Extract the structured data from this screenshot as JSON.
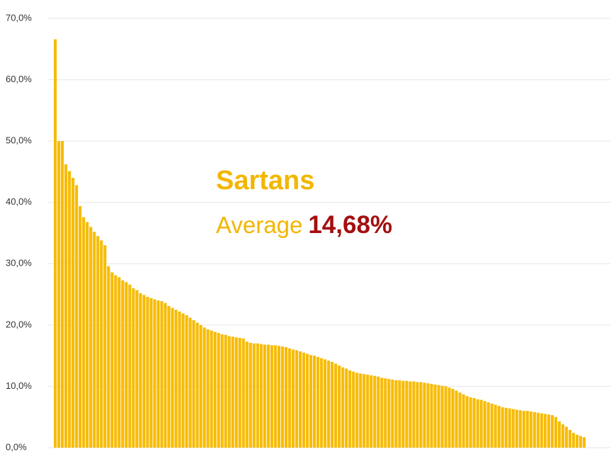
{
  "chart_data": {
    "type": "bar",
    "annotations": {
      "title": "Sartans",
      "label": "Average",
      "value": "14,68%"
    },
    "values": [
      66.6,
      50.0,
      50.0,
      46.2,
      45.1,
      44.0,
      42.8,
      39.4,
      37.6,
      36.8,
      36.0,
      35.2,
      34.5,
      33.8,
      33.0,
      29.6,
      28.6,
      28.1,
      27.8,
      27.3,
      27.0,
      26.6,
      26.0,
      25.7,
      25.2,
      24.9,
      24.6,
      24.4,
      24.2,
      24.0,
      23.9,
      23.6,
      23.1,
      22.8,
      22.5,
      22.2,
      21.9,
      21.6,
      21.2,
      20.8,
      20.4,
      20.0,
      19.6,
      19.3,
      19.1,
      18.9,
      18.7,
      18.5,
      18.4,
      18.2,
      18.1,
      18.0,
      17.9,
      17.8,
      17.3,
      17.1,
      17.0,
      17.0,
      16.9,
      16.8,
      16.8,
      16.7,
      16.7,
      16.6,
      16.5,
      16.4,
      16.2,
      16.0,
      15.9,
      15.7,
      15.5,
      15.3,
      15.1,
      15.0,
      14.8,
      14.6,
      14.4,
      14.2,
      14.0,
      13.7,
      13.4,
      13.1,
      12.9,
      12.6,
      12.4,
      12.2,
      12.1,
      12.0,
      11.9,
      11.8,
      11.7,
      11.6,
      11.4,
      11.3,
      11.2,
      11.1,
      11.0,
      11.0,
      10.9,
      10.9,
      10.8,
      10.8,
      10.7,
      10.7,
      10.6,
      10.5,
      10.4,
      10.3,
      10.2,
      10.1,
      10.0,
      9.8,
      9.6,
      9.3,
      9.0,
      8.7,
      8.4,
      8.2,
      8.1,
      7.9,
      7.8,
      7.6,
      7.4,
      7.2,
      7.0,
      6.8,
      6.6,
      6.5,
      6.4,
      6.3,
      6.2,
      6.1,
      6.0,
      6.0,
      5.9,
      5.8,
      5.7,
      5.6,
      5.5,
      5.4,
      5.3,
      5.0,
      4.3,
      3.8,
      3.4,
      2.9,
      2.4,
      2.1,
      1.9,
      1.7
    ],
    "color": "#f7bc08",
    "ylim": [
      0,
      70
    ],
    "yticks": [
      {
        "value": 0,
        "label": "0,0%"
      },
      {
        "value": 10,
        "label": "10,0%"
      },
      {
        "value": 20,
        "label": "20,0%"
      },
      {
        "value": 30,
        "label": "30,0%"
      },
      {
        "value": 40,
        "label": "40,0%"
      },
      {
        "value": 50,
        "label": "50,0%"
      },
      {
        "value": 60,
        "label": "60,0%"
      },
      {
        "value": 70,
        "label": "70,0%"
      }
    ],
    "grid": true
  }
}
